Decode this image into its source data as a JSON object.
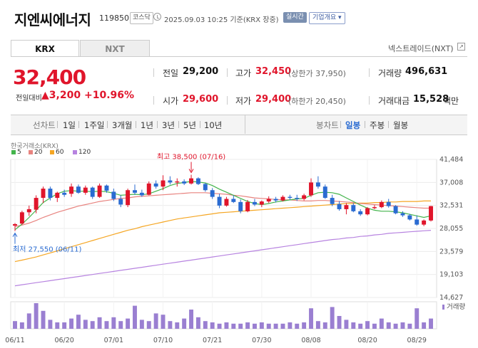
{
  "header": {
    "name": "지엔씨에너지",
    "code": "119850",
    "market": "코스닥",
    "datetime": "2025.09.03 10:25 기준(KRX 장중)",
    "realtime_label": "실시간",
    "company_info_label": "기업개요"
  },
  "tabs": [
    "KRX",
    "NXT"
  ],
  "nxt_link": "넥스트레이드(NXT)",
  "price": {
    "current": "32,400",
    "change_label": "전일대비",
    "change": "3,200",
    "change_pct": "+10.96%",
    "direction": "up"
  },
  "quote": {
    "prev_close_label": "전일",
    "prev_close": "29,200",
    "high_label": "고가",
    "high": "32,450",
    "upper_limit": "(상한가 37,950)",
    "volume_label": "거래량",
    "volume": "496,631",
    "open_label": "시가",
    "open": "29,600",
    "low_label": "저가",
    "low": "29,400",
    "lower_limit": "(하한가 20,450)",
    "amount_label": "거래대금",
    "amount": "15,528",
    "amount_unit": "백만"
  },
  "toolbar": {
    "line_chart_label": "선차트",
    "periods": [
      "1일",
      "1주일",
      "3개월",
      "1년",
      "3년",
      "5년",
      "10년"
    ],
    "candle_chart_label": "봉차트",
    "candle_periods": [
      "일봉",
      "주봉",
      "월봉"
    ],
    "candle_selected": "일봉"
  },
  "colors": {
    "up": "#e0152b",
    "down": "#2a6bd1",
    "ma5": "#43b44b",
    "ma20": "#e8837f",
    "ma60": "#f5a623",
    "ma120": "#b783e0",
    "volume": "#9a7fd1"
  },
  "chart_data": {
    "type": "candlestick",
    "title": "한국거래소(KRX)",
    "legend": [
      "5",
      "20",
      "60",
      "120"
    ],
    "y_ticks": [
      41484,
      37008,
      32531,
      28055,
      23579,
      19103,
      14627
    ],
    "y_tick_labels": [
      "41,484",
      "37,008",
      "32,531",
      "28,055",
      "23,579",
      "19,103",
      "14,627"
    ],
    "ylim": [
      14627,
      41484
    ],
    "x_tick_labels": [
      "06/11",
      "06/20",
      "07/01",
      "07/10",
      "07/21",
      "07/30",
      "08/08",
      "08/20",
      "08/29"
    ],
    "x_tick_index": [
      0,
      7,
      14,
      21,
      28,
      35,
      42,
      50,
      57
    ],
    "annotations": {
      "high": {
        "label": "최고 38,500 (07/16)",
        "value": 38500,
        "index": 25
      },
      "low": {
        "label": "최저 27,550 (06/11)",
        "value": 27550,
        "index": 0
      }
    },
    "volume_label": "거래량",
    "candles": [
      [
        28600,
        29100,
        27550,
        28900
      ],
      [
        29000,
        31500,
        28800,
        31200
      ],
      [
        31200,
        32500,
        30500,
        31800
      ],
      [
        31700,
        34500,
        31000,
        34000
      ],
      [
        34000,
        36200,
        33000,
        35800
      ],
      [
        35800,
        36200,
        33500,
        34000
      ],
      [
        34000,
        35200,
        33200,
        35000
      ],
      [
        35000,
        35600,
        34200,
        34600
      ],
      [
        34800,
        36800,
        34200,
        36200
      ],
      [
        36200,
        36600,
        34800,
        35000
      ],
      [
        35000,
        36400,
        34600,
        36000
      ],
      [
        36000,
        36200,
        33800,
        34200
      ],
      [
        34200,
        36800,
        34000,
        36400
      ],
      [
        36400,
        36600,
        35000,
        35400
      ],
      [
        35200,
        35800,
        33400,
        33800
      ],
      [
        33800,
        34500,
        32200,
        32700
      ],
      [
        32600,
        35800,
        32200,
        35500
      ],
      [
        35500,
        36600,
        34600,
        35000
      ],
      [
        35000,
        35600,
        34200,
        34500
      ],
      [
        34600,
        37200,
        34500,
        36800
      ],
      [
        36800,
        37400,
        35800,
        36200
      ],
      [
        36200,
        38400,
        35500,
        37400
      ],
      [
        37400,
        38200,
        36600,
        37000
      ],
      [
        37000,
        37800,
        36200,
        37200
      ],
      [
        37200,
        37600,
        36500,
        36800
      ],
      [
        36800,
        38500,
        36600,
        37800
      ],
      [
        37800,
        38000,
        36500,
        36700
      ],
      [
        36700,
        36900,
        35200,
        35500
      ],
      [
        35500,
        35900,
        33800,
        34200
      ],
      [
        34200,
        34800,
        32000,
        32500
      ],
      [
        32500,
        34200,
        32300,
        33800
      ],
      [
        33800,
        34500,
        33000,
        33200
      ],
      [
        33200,
        33700,
        31000,
        31400
      ],
      [
        31400,
        33600,
        31200,
        33200
      ],
      [
        33200,
        33800,
        32400,
        32700
      ],
      [
        32700,
        33500,
        32200,
        33300
      ],
      [
        33300,
        34300,
        33000,
        33800
      ],
      [
        33800,
        34200,
        33100,
        33500
      ],
      [
        33500,
        34500,
        33300,
        34200
      ],
      [
        34200,
        34600,
        33600,
        34000
      ],
      [
        34000,
        34600,
        33400,
        33800
      ],
      [
        33800,
        34800,
        33500,
        34500
      ],
      [
        34500,
        37800,
        34200,
        37000
      ],
      [
        37000,
        38200,
        35800,
        36200
      ],
      [
        36200,
        36600,
        33800,
        34000
      ],
      [
        34000,
        34600,
        32400,
        32800
      ],
      [
        32800,
        33400,
        31500,
        31800
      ],
      [
        31800,
        33000,
        30800,
        32600
      ],
      [
        32600,
        33000,
        31200,
        31400
      ],
      [
        31400,
        31800,
        30500,
        30800
      ],
      [
        30800,
        32200,
        30600,
        32000
      ],
      [
        32000,
        32600,
        31800,
        32200
      ],
      [
        32200,
        33500,
        32000,
        33200
      ],
      [
        33200,
        33800,
        32100,
        32400
      ],
      [
        32400,
        32600,
        30800,
        31000
      ],
      [
        31000,
        31400,
        30300,
        30600
      ],
      [
        30600,
        30900,
        29600,
        29800
      ],
      [
        29800,
        30600,
        28600,
        28800
      ],
      [
        28800,
        29800,
        28500,
        29600
      ],
      [
        29600,
        32450,
        29400,
        32400
      ]
    ],
    "ma5": [
      27800,
      28900,
      30200,
      31600,
      33100,
      34000,
      34800,
      35300,
      35400,
      35300,
      35300,
      35200,
      35300,
      35200,
      34900,
      34500,
      34600,
      34700,
      34600,
      34800,
      35300,
      35800,
      36400,
      36800,
      37000,
      37200,
      37100,
      36900,
      36400,
      35700,
      35100,
      34500,
      33900,
      33300,
      32900,
      32700,
      32900,
      33200,
      33400,
      33600,
      33800,
      33900,
      34500,
      35000,
      35100,
      35000,
      34700,
      34000,
      33300,
      32600,
      32000,
      31600,
      31400,
      31400,
      31300,
      31100,
      30800,
      30500,
      30200,
      30500
    ],
    "ma20": [
      28400,
      28700,
      29100,
      29600,
      30200,
      30700,
      31200,
      31600,
      32000,
      32400,
      32700,
      33000,
      33300,
      33500,
      33700,
      33900,
      34000,
      34200,
      34300,
      34400,
      34500,
      34600,
      34700,
      34800,
      34900,
      35000,
      35000,
      35000,
      34900,
      34800,
      34700,
      34500,
      34400,
      34200,
      34000,
      33900,
      33800,
      33700,
      33600,
      33600,
      33500,
      33400,
      33400,
      33500,
      33500,
      33400,
      33300,
      33200,
      33100,
      32900,
      32800,
      32700,
      32600,
      32500,
      32400,
      32300,
      32200,
      32100,
      32000,
      32000
    ],
    "ma60": [
      21600,
      21900,
      22200,
      22500,
      22900,
      23300,
      23700,
      24100,
      24500,
      24900,
      25300,
      25700,
      26100,
      26500,
      26900,
      27300,
      27700,
      28000,
      28400,
      28700,
      29000,
      29300,
      29600,
      29900,
      30100,
      30300,
      30500,
      30700,
      30900,
      31100,
      31200,
      31300,
      31400,
      31500,
      31600,
      31700,
      31800,
      31900,
      32000,
      32100,
      32200,
      32300,
      32400,
      32500,
      32600,
      32700,
      32800,
      32900,
      32900,
      33000,
      33000,
      33100,
      33100,
      33200,
      33200,
      33300,
      33300,
      33300,
      33400,
      33400
    ],
    "ma120": [
      16900,
      17100,
      17300,
      17500,
      17700,
      17900,
      18100,
      18300,
      18500,
      18700,
      18900,
      19100,
      19300,
      19500,
      19700,
      19900,
      20100,
      20300,
      20500,
      20700,
      20900,
      21100,
      21300,
      21500,
      21700,
      21900,
      22100,
      22300,
      22500,
      22700,
      22900,
      23100,
      23300,
      23500,
      23700,
      23900,
      24100,
      24300,
      24500,
      24700,
      24900,
      25100,
      25300,
      25500,
      25700,
      25900,
      26000,
      26200,
      26300,
      26500,
      26600,
      26800,
      26900,
      27100,
      27200,
      27300,
      27400,
      27500,
      27600,
      27700
    ],
    "volume": [
      30,
      25,
      60,
      100,
      70,
      35,
      25,
      25,
      40,
      55,
      35,
      30,
      45,
      30,
      45,
      30,
      40,
      90,
      35,
      30,
      60,
      55,
      30,
      25,
      40,
      75,
      45,
      30,
      25,
      20,
      25,
      20,
      20,
      25,
      20,
      25,
      20,
      20,
      20,
      25,
      20,
      25,
      80,
      30,
      25,
      85,
      50,
      35,
      25,
      20,
      30,
      20,
      40,
      25,
      20,
      25,
      20,
      80,
      25,
      40
    ]
  }
}
